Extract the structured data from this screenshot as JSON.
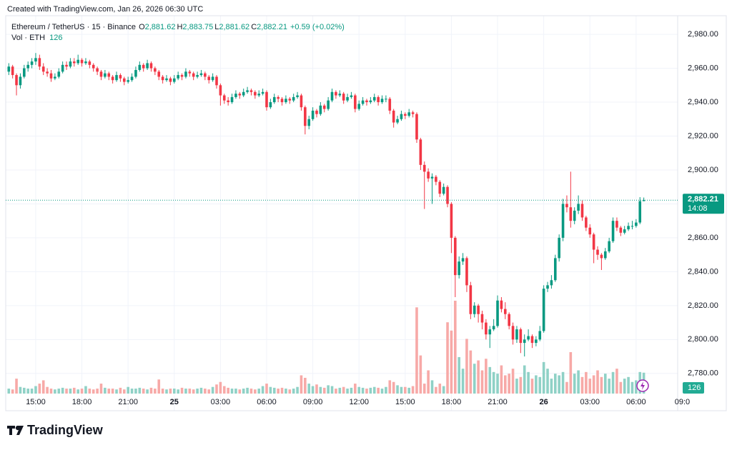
{
  "chart_data": {
    "type": "candlestick",
    "credit": "Created with TradingView.com, Jan 26, 2026 06:30 UTC",
    "symbol": "Ethereum / TetherUS · 15 · Binance",
    "ohlc_legend": [
      {
        "key": "O",
        "label": "2,881.62"
      },
      {
        "key": "H",
        "label": "2,883.75"
      },
      {
        "key": "L",
        "label": "2,881.62"
      },
      {
        "key": "C",
        "label": "2,882.21"
      }
    ],
    "change": "+0.59 (+0.02%)",
    "volume_title": "Vol · ETH",
    "volume_label": "126",
    "last_price": {
      "value": 2882.21,
      "label": "2,882.21"
    },
    "countdown": "14:08",
    "brand": "TradingView",
    "up_color": "#089981",
    "down_color": "#f23645",
    "up_volume_color": "#8fd1c6",
    "down_volume_color": "#f7a9a7",
    "grid": true,
    "ylim": [
      2758,
      2991
    ],
    "yticks": [
      {
        "value": 2780,
        "label": "2,780.00"
      },
      {
        "value": 2800,
        "label": "2,800.00"
      },
      {
        "value": 2820,
        "label": "2,820.00"
      },
      {
        "value": 2840,
        "label": "2,840.00"
      },
      {
        "value": 2860,
        "label": "2,860.00"
      },
      {
        "value": 2880,
        "label": "2,880.00"
      },
      {
        "value": 2900,
        "label": "2,900.00"
      },
      {
        "value": 2920,
        "label": "2,920.00"
      },
      {
        "value": 2940,
        "label": "2,940.00"
      },
      {
        "value": 2960,
        "label": "2,960.00"
      },
      {
        "value": 2980,
        "label": "2,980.00"
      }
    ],
    "xlim": [
      -2.28,
      173.8
    ],
    "xticks": [
      {
        "value": 7,
        "label": "15:00"
      },
      {
        "value": 19,
        "label": "18:00"
      },
      {
        "value": 31,
        "label": "21:00"
      },
      {
        "value": 43,
        "label": "25"
      },
      {
        "value": 55,
        "label": "03:00"
      },
      {
        "value": 67,
        "label": "06:00"
      },
      {
        "value": 79,
        "label": "09:00"
      },
      {
        "value": 91,
        "label": "12:00"
      },
      {
        "value": 103,
        "label": "15:00"
      },
      {
        "value": 115,
        "label": "18:00"
      },
      {
        "value": 127,
        "label": "21:00"
      },
      {
        "value": 139,
        "label": "26"
      },
      {
        "value": 151,
        "label": "03:00"
      },
      {
        "value": 163,
        "label": "06:00"
      },
      {
        "value": 175,
        "label": "09:0"
      }
    ],
    "candles": [
      [
        2958,
        2963,
        2956,
        2961
      ],
      [
        2961,
        2962,
        2954,
        2956
      ],
      [
        2956,
        2957,
        2944,
        2950
      ],
      [
        2950,
        2957,
        2948,
        2955
      ],
      [
        2955,
        2962,
        2954,
        2960
      ],
      [
        2960,
        2964,
        2958,
        2962
      ],
      [
        2962,
        2966,
        2960,
        2964
      ],
      [
        2964,
        2969,
        2962,
        2966
      ],
      [
        2966,
        2968,
        2959,
        2961
      ],
      [
        2961,
        2963,
        2956,
        2958
      ],
      [
        2958,
        2960,
        2955,
        2957
      ],
      [
        2957,
        2959,
        2952,
        2954
      ],
      [
        2954,
        2957,
        2953,
        2955
      ],
      [
        2955,
        2960,
        2954,
        2958
      ],
      [
        2958,
        2964,
        2957,
        2962
      ],
      [
        2962,
        2964,
        2959,
        2961
      ],
      [
        2961,
        2966,
        2960,
        2964
      ],
      [
        2964,
        2966,
        2961,
        2963
      ],
      [
        2963,
        2968,
        2962,
        2965
      ],
      [
        2965,
        2966,
        2961,
        2963
      ],
      [
        2963,
        2966,
        2962,
        2964
      ],
      [
        2964,
        2965,
        2960,
        2962
      ],
      [
        2962,
        2963,
        2958,
        2960
      ],
      [
        2960,
        2961,
        2956,
        2958
      ],
      [
        2958,
        2959,
        2953,
        2955
      ],
      [
        2955,
        2959,
        2954,
        2957
      ],
      [
        2957,
        2958,
        2953,
        2955
      ],
      [
        2955,
        2956,
        2951,
        2953
      ],
      [
        2953,
        2958,
        2952,
        2956
      ],
      [
        2956,
        2957,
        2952,
        2954
      ],
      [
        2954,
        2955,
        2950,
        2952
      ],
      [
        2952,
        2955,
        2951,
        2953
      ],
      [
        2953,
        2957,
        2952,
        2955
      ],
      [
        2955,
        2961,
        2954,
        2959
      ],
      [
        2959,
        2964,
        2958,
        2962
      ],
      [
        2962,
        2963,
        2958,
        2960
      ],
      [
        2960,
        2965,
        2959,
        2963
      ],
      [
        2963,
        2964,
        2958,
        2960
      ],
      [
        2960,
        2961,
        2956,
        2958
      ],
      [
        2958,
        2959,
        2953,
        2955
      ],
      [
        2955,
        2956,
        2951,
        2953
      ],
      [
        2953,
        2956,
        2952,
        2954
      ],
      [
        2954,
        2955,
        2950,
        2952
      ],
      [
        2952,
        2956,
        2951,
        2954
      ],
      [
        2954,
        2958,
        2953,
        2956
      ],
      [
        2956,
        2957,
        2953,
        2955
      ],
      [
        2955,
        2960,
        2954,
        2958
      ],
      [
        2958,
        2959,
        2955,
        2957
      ],
      [
        2957,
        2958,
        2953,
        2955
      ],
      [
        2955,
        2958,
        2954,
        2956
      ],
      [
        2956,
        2959,
        2955,
        2957
      ],
      [
        2957,
        2958,
        2953,
        2955
      ],
      [
        2955,
        2956,
        2951,
        2953
      ],
      [
        2953,
        2957,
        2952,
        2955
      ],
      [
        2955,
        2956,
        2948,
        2950
      ],
      [
        2950,
        2951,
        2938,
        2944
      ],
      [
        2944,
        2945,
        2939,
        2941
      ],
      [
        2941,
        2943,
        2938,
        2940
      ],
      [
        2940,
        2945,
        2939,
        2943
      ],
      [
        2943,
        2947,
        2942,
        2945
      ],
      [
        2945,
        2946,
        2942,
        2944
      ],
      [
        2944,
        2948,
        2943,
        2946
      ],
      [
        2946,
        2949,
        2945,
        2947
      ],
      [
        2947,
        2948,
        2944,
        2946
      ],
      [
        2946,
        2947,
        2942,
        2944
      ],
      [
        2944,
        2947,
        2943,
        2945
      ],
      [
        2945,
        2948,
        2944,
        2946
      ],
      [
        2946,
        2947,
        2935,
        2937
      ],
      [
        2937,
        2942,
        2936,
        2940
      ],
      [
        2940,
        2945,
        2939,
        2943
      ],
      [
        2943,
        2944,
        2940,
        2942
      ],
      [
        2942,
        2943,
        2938,
        2940
      ],
      [
        2940,
        2944,
        2939,
        2942
      ],
      [
        2942,
        2943,
        2939,
        2941
      ],
      [
        2941,
        2945,
        2940,
        2943
      ],
      [
        2943,
        2946,
        2942,
        2944
      ],
      [
        2944,
        2945,
        2935,
        2937
      ],
      [
        2937,
        2938,
        2921,
        2926
      ],
      [
        2926,
        2932,
        2924,
        2930
      ],
      [
        2930,
        2937,
        2929,
        2935
      ],
      [
        2935,
        2936,
        2931,
        2933
      ],
      [
        2933,
        2940,
        2932,
        2938
      ],
      [
        2938,
        2939,
        2934,
        2936
      ],
      [
        2936,
        2943,
        2935,
        2941
      ],
      [
        2941,
        2948,
        2940,
        2946
      ],
      [
        2946,
        2947,
        2942,
        2944
      ],
      [
        2944,
        2947,
        2943,
        2945
      ],
      [
        2945,
        2946,
        2939,
        2941
      ],
      [
        2941,
        2945,
        2940,
        2943
      ],
      [
        2943,
        2946,
        2942,
        2944
      ],
      [
        2944,
        2945,
        2934,
        2936
      ],
      [
        2936,
        2941,
        2935,
        2939
      ],
      [
        2939,
        2943,
        2938,
        2941
      ],
      [
        2941,
        2942,
        2938,
        2940
      ],
      [
        2940,
        2943,
        2939,
        2941
      ],
      [
        2941,
        2945,
        2940,
        2943
      ],
      [
        2943,
        2944,
        2938,
        2940
      ],
      [
        2940,
        2944,
        2939,
        2942
      ],
      [
        2942,
        2944,
        2940,
        2942
      ],
      [
        2942,
        2943,
        2933,
        2935
      ],
      [
        2935,
        2936,
        2925,
        2928
      ],
      [
        2928,
        2932,
        2927,
        2930
      ],
      [
        2930,
        2935,
        2929,
        2933
      ],
      [
        2933,
        2934,
        2930,
        2932
      ],
      [
        2932,
        2936,
        2931,
        2934
      ],
      [
        2934,
        2935,
        2931,
        2933
      ],
      [
        2933,
        2934,
        2916,
        2918
      ],
      [
        2918,
        2919,
        2900,
        2903
      ],
      [
        2903,
        2905,
        2877,
        2899
      ],
      [
        2899,
        2901,
        2893,
        2895
      ],
      [
        2895,
        2898,
        2880,
        2896
      ],
      [
        2896,
        2897,
        2891,
        2893
      ],
      [
        2893,
        2894,
        2884,
        2886
      ],
      [
        2886,
        2892,
        2885,
        2890
      ],
      [
        2890,
        2891,
        2878,
        2880
      ],
      [
        2880,
        2881,
        2851,
        2860
      ],
      [
        2860,
        2861,
        2825,
        2838
      ],
      [
        2838,
        2849,
        2836,
        2846
      ],
      [
        2846,
        2851,
        2844,
        2848
      ],
      [
        2848,
        2849,
        2828,
        2832
      ],
      [
        2832,
        2834,
        2812,
        2815
      ],
      [
        2815,
        2822,
        2813,
        2820
      ],
      [
        2820,
        2821,
        2810,
        2815
      ],
      [
        2815,
        2817,
        2806,
        2810
      ],
      [
        2810,
        2812,
        2800,
        2803
      ],
      [
        2803,
        2808,
        2795,
        2806
      ],
      [
        2806,
        2812,
        2805,
        2808
      ],
      [
        2808,
        2826,
        2807,
        2823
      ],
      [
        2823,
        2825,
        2816,
        2818
      ],
      [
        2818,
        2822,
        2812,
        2815
      ],
      [
        2815,
        2816,
        2806,
        2808
      ],
      [
        2808,
        2810,
        2797,
        2800
      ],
      [
        2800,
        2808,
        2798,
        2806
      ],
      [
        2806,
        2807,
        2792,
        2798
      ],
      [
        2798,
        2803,
        2790,
        2800
      ],
      [
        2800,
        2806,
        2799,
        2802
      ],
      [
        2802,
        2803,
        2795,
        2798
      ],
      [
        2798,
        2802,
        2796,
        2800
      ],
      [
        2800,
        2808,
        2799,
        2805
      ],
      [
        2805,
        2832,
        2804,
        2830
      ],
      [
        2830,
        2834,
        2828,
        2832
      ],
      [
        2832,
        2838,
        2830,
        2835
      ],
      [
        2835,
        2850,
        2834,
        2848
      ],
      [
        2848,
        2862,
        2846,
        2860
      ],
      [
        2860,
        2883,
        2858,
        2880
      ],
      [
        2880,
        2885,
        2875,
        2878
      ],
      [
        2878,
        2899,
        2866,
        2870
      ],
      [
        2870,
        2878,
        2868,
        2876
      ],
      [
        2876,
        2885,
        2874,
        2880
      ],
      [
        2880,
        2882,
        2870,
        2872
      ],
      [
        2872,
        2873,
        2864,
        2866
      ],
      [
        2866,
        2868,
        2860,
        2862
      ],
      [
        2862,
        2863,
        2845,
        2853
      ],
      [
        2853,
        2855,
        2847,
        2850
      ],
      [
        2850,
        2851,
        2841,
        2848
      ],
      [
        2848,
        2854,
        2847,
        2852
      ],
      [
        2852,
        2860,
        2851,
        2858
      ],
      [
        2858,
        2872,
        2857,
        2870
      ],
      [
        2870,
        2872,
        2864,
        2866
      ],
      [
        2866,
        2867,
        2861,
        2863
      ],
      [
        2863,
        2867,
        2862,
        2865
      ],
      [
        2865,
        2869,
        2864,
        2867
      ],
      [
        2867,
        2870,
        2865,
        2867
      ],
      [
        2867,
        2871,
        2866,
        2869
      ],
      [
        2869,
        2884,
        2868,
        2881.62
      ],
      [
        2881.62,
        2883.75,
        2881.62,
        2882.21
      ]
    ],
    "volume": [
      30,
      25,
      90,
      40,
      35,
      30,
      30,
      45,
      60,
      80,
      40,
      30,
      25,
      30,
      35,
      30,
      30,
      35,
      25,
      30,
      45,
      30,
      25,
      30,
      60,
      35,
      30,
      30,
      25,
      35,
      25,
      40,
      30,
      30,
      35,
      30,
      25,
      35,
      30,
      85,
      30,
      25,
      30,
      30,
      25,
      35,
      30,
      30,
      25,
      30,
      35,
      30,
      25,
      40,
      55,
      70,
      45,
      35,
      30,
      30,
      25,
      30,
      35,
      30,
      25,
      30,
      45,
      60,
      40,
      35,
      30,
      35,
      30,
      25,
      30,
      40,
      110,
      95,
      60,
      45,
      55,
      40,
      35,
      50,
      45,
      30,
      35,
      40,
      30,
      35,
      60,
      40,
      35,
      30,
      35,
      40,
      35,
      30,
      40,
      80,
      70,
      50,
      40,
      40,
      35,
      45,
      520,
      230,
      60,
      140,
      80,
      40,
      60,
      45,
      430,
      380,
      560,
      220,
      150,
      330,
      260,
      180,
      200,
      140,
      210,
      160,
      130,
      120,
      170,
      110,
      120,
      150,
      90,
      100,
      170,
      130,
      90,
      110,
      100,
      190,
      150,
      90,
      120,
      110,
      130,
      70,
      250,
      120,
      140,
      100,
      130,
      90,
      110,
      140,
      100,
      120,
      90,
      130,
      150,
      70,
      90,
      100,
      70,
      80,
      130,
      126
    ]
  }
}
